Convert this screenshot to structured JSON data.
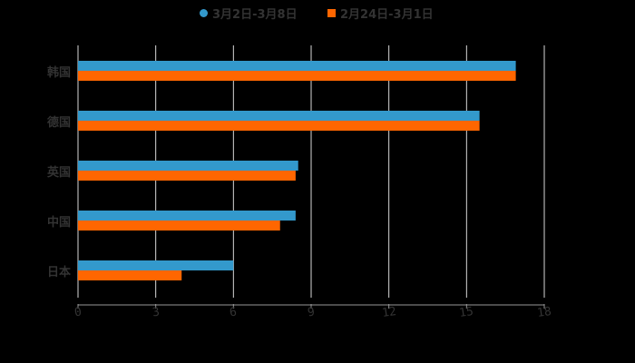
{
  "chart_data": {
    "type": "bar",
    "orientation": "horizontal",
    "title": "",
    "categories": [
      "韩国",
      "德国",
      "英国",
      "中国",
      "日本"
    ],
    "series": [
      {
        "name": "3月2日-3月8日",
        "color": "#3399cc",
        "values": [
          16.9,
          15.5,
          8.5,
          8.4,
          6.0
        ]
      },
      {
        "name": "2月24日-3月1日",
        "color": "#ff6600",
        "values": [
          16.9,
          15.5,
          8.4,
          7.8,
          4.0
        ]
      }
    ],
    "xlabel": "",
    "ylabel": "",
    "xlim": [
      0,
      18
    ],
    "xticks": [
      "0",
      "3",
      "6",
      "9",
      "12",
      "15",
      "18"
    ],
    "grid": true,
    "legend_position": "top"
  },
  "legend": {
    "series0": "3月2日-3月8日",
    "series1": "2月24日-3月1日"
  }
}
